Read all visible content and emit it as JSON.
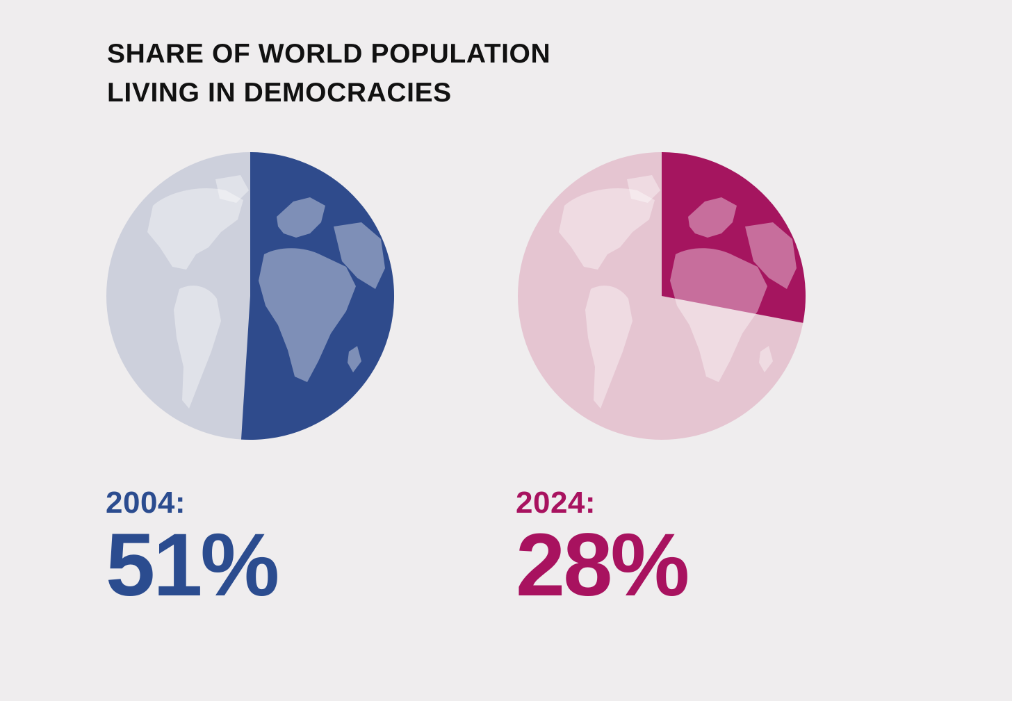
{
  "title": {
    "line1": "SHARE OF WORLD POPULATION",
    "line2": "LIVING IN DEMOCRACIES"
  },
  "colors": {
    "background": "#efedee",
    "title": "#111111",
    "blue_base": "#cdd0dc",
    "blue_fill": "#2f4b8c",
    "pink_base": "#e5c5d1",
    "pink_fill": "#a5155f"
  },
  "chart_data": [
    {
      "type": "pie",
      "year_label": "2004:",
      "value_label": "51%",
      "value": 51,
      "base_color": "#cdd0dc",
      "fill_color": "#2f4b8c",
      "text_color": "#2b4c8f",
      "icon": "globe-icon"
    },
    {
      "type": "pie",
      "year_label": "2024:",
      "value_label": "28%",
      "value": 28,
      "base_color": "#e5c5d1",
      "fill_color": "#a5155f",
      "text_color": "#a8125f",
      "icon": "globe-icon"
    }
  ]
}
